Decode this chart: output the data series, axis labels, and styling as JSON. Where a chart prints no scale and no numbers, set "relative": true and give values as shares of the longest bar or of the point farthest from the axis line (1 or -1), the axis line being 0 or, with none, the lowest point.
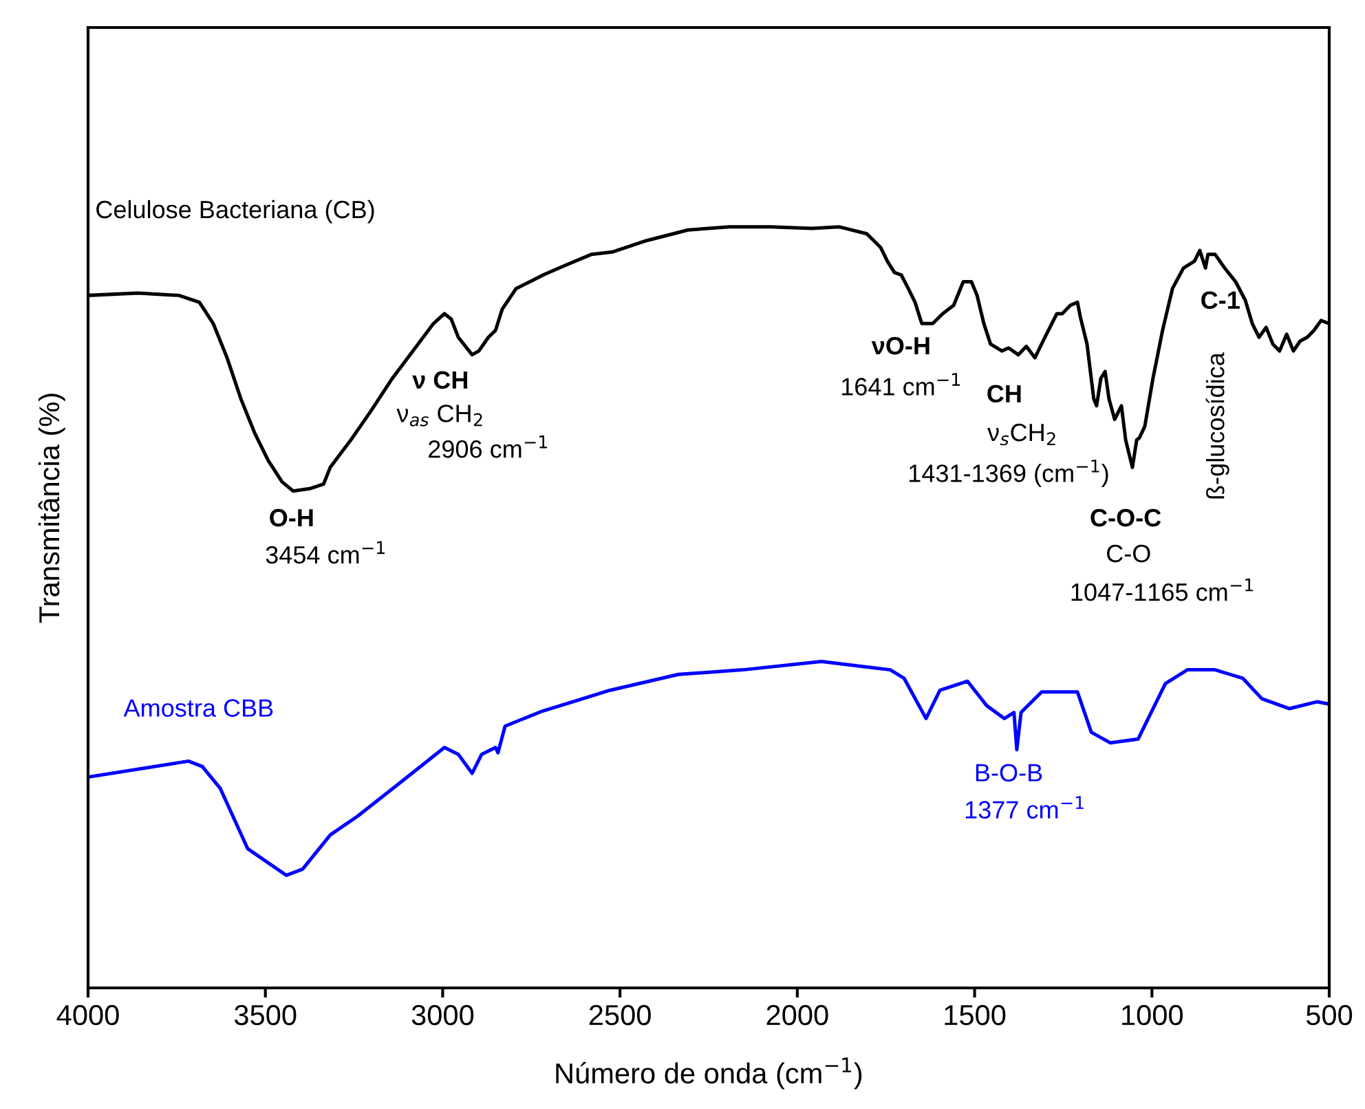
{
  "chart_data": {
    "type": "line",
    "relative": true,
    "xlabel": "Número de onda (cm$^{−1}$)",
    "ylabel": "Transmitância (%)",
    "xlim": [
      4000,
      500
    ],
    "xticks": [
      4000,
      3500,
      3000,
      2500,
      2000,
      1500,
      1000,
      500
    ],
    "grid": false,
    "legend": false,
    "marker": "none",
    "line_style": "solid",
    "series": [
      {
        "name": "Celulose Bacteriana (CB)",
        "color": "#000000",
        "x": [
          4000,
          3860,
          3744,
          3686,
          3647,
          3608,
          3569,
          3530,
          3492,
          3453,
          3422,
          3375,
          3336,
          3317,
          3259,
          3201,
          3142,
          3084,
          3026,
          2995,
          2976,
          2956,
          2917,
          2898,
          2871,
          2851,
          2832,
          2793,
          2754,
          2716,
          2657,
          2580,
          2522,
          2425,
          2308,
          2192,
          2075,
          1959,
          1881,
          1804,
          1765,
          1746,
          1726,
          1707,
          1687,
          1668,
          1649,
          1618,
          1590,
          1559,
          1532,
          1509,
          1493,
          1474,
          1455,
          1423,
          1404,
          1377,
          1354,
          1330,
          1307,
          1292,
          1268,
          1253,
          1230,
          1210,
          1202,
          1183,
          1164,
          1156,
          1144,
          1132,
          1121,
          1105,
          1086,
          1074,
          1055,
          1043,
          1035,
          1020,
          997,
          970,
          942,
          911,
          880,
          865,
          849,
          842,
          822,
          795,
          764,
          737,
          717,
          698,
          678,
          659,
          640,
          620,
          601,
          582,
          562,
          543,
          523,
          500
        ],
        "values": [
          0.91,
          0.913,
          0.91,
          0.901,
          0.873,
          0.828,
          0.774,
          0.729,
          0.693,
          0.665,
          0.653,
          0.656,
          0.662,
          0.684,
          0.72,
          0.759,
          0.801,
          0.837,
          0.873,
          0.886,
          0.879,
          0.855,
          0.832,
          0.837,
          0.855,
          0.864,
          0.892,
          0.919,
          0.928,
          0.937,
          0.949,
          0.964,
          0.967,
          0.982,
          0.996,
          1,
          1,
          0.998,
          1,
          0.991,
          0.973,
          0.955,
          0.94,
          0.937,
          0.919,
          0.901,
          0.873,
          0.873,
          0.886,
          0.897,
          0.928,
          0.928,
          0.91,
          0.873,
          0.846,
          0.837,
          0.841,
          0.832,
          0.843,
          0.828,
          0.85,
          0.864,
          0.886,
          0.886,
          0.897,
          0.901,
          0.882,
          0.846,
          0.774,
          0.765,
          0.801,
          0.81,
          0.774,
          0.747,
          0.765,
          0.72,
          0.684,
          0.72,
          0.723,
          0.738,
          0.801,
          0.864,
          0.919,
          0.946,
          0.955,
          0.969,
          0.946,
          0.964,
          0.964,
          0.946,
          0.928,
          0.904,
          0.873,
          0.855,
          0.868,
          0.846,
          0.837,
          0.859,
          0.837,
          0.85,
          0.855,
          0.864,
          0.877,
          0.873
        ]
      },
      {
        "name": "Amostra CBB",
        "color": "#0000ff",
        "x": [
          4000,
          3717,
          3678,
          3627,
          3550,
          3441,
          3395,
          3317,
          3239,
          3111,
          2995,
          2956,
          2917,
          2890,
          2851,
          2844,
          2824,
          2723,
          2529,
          2335,
          2153,
          1932,
          1738,
          1699,
          1637,
          1598,
          1520,
          1466,
          1416,
          1389,
          1381,
          1369,
          1311,
          1210,
          1171,
          1117,
          1039,
          962,
          900,
          822,
          744,
          690,
          612,
          535,
          500
        ],
        "values": [
          0.277,
          0.298,
          0.291,
          0.262,
          0.183,
          0.148,
          0.156,
          0.201,
          0.226,
          0.273,
          0.316,
          0.307,
          0.282,
          0.307,
          0.316,
          0.309,
          0.344,
          0.363,
          0.391,
          0.412,
          0.418,
          0.429,
          0.418,
          0.407,
          0.354,
          0.391,
          0.403,
          0.371,
          0.354,
          0.362,
          0.313,
          0.362,
          0.389,
          0.389,
          0.336,
          0.322,
          0.327,
          0.4,
          0.418,
          0.418,
          0.407,
          0.38,
          0.367,
          0.376,
          0.373
        ]
      }
    ],
    "annotations": [
      "O-H",
      "3454 cm$^{−1}$",
      "ν CH",
      "ν$_{as}$ CH$_{2}$",
      "2906 cm$^{−1}$",
      "νO-H",
      "1641 cm$^{−1}$",
      "CH",
      "ν$_{s}$CH$_{2}$",
      "1431-1369 (cm$^{−1}$)",
      "C-O-C",
      "C-O",
      "1047-1165 cm$^{−1}$",
      "C-1",
      "ß-glucosídica",
      "B-O-B",
      "1377 cm$^{−1}$"
    ]
  }
}
